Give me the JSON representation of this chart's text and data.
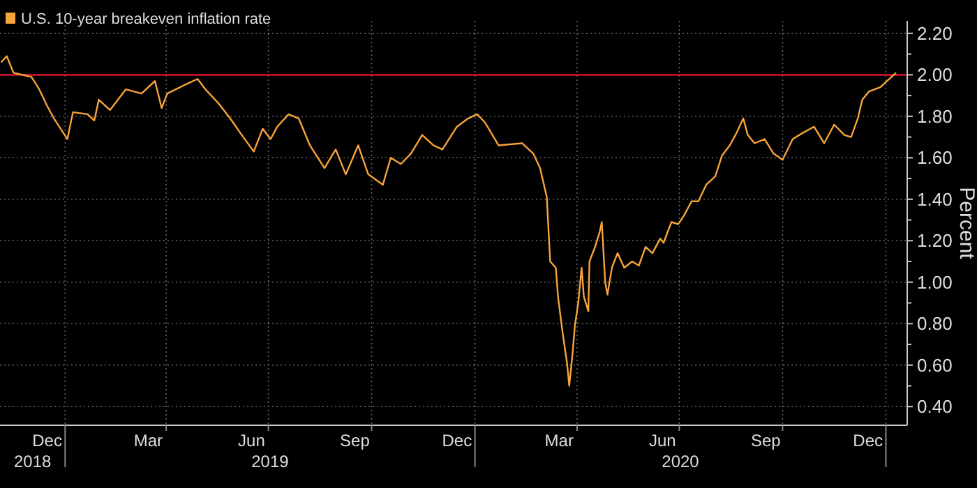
{
  "chart_data": {
    "type": "line",
    "legend": "top left",
    "grid": true,
    "ylabel": "Percent",
    "xlim": [
      "2018-11-04",
      "2021-01-20"
    ],
    "ylim": [
      0.31,
      2.26
    ],
    "yticks": [
      {
        "value": 0.4,
        "label": "0.40"
      },
      {
        "value": 0.6,
        "label": "0.60"
      },
      {
        "value": 0.8,
        "label": "0.80"
      },
      {
        "value": 1.0,
        "label": "1.00"
      },
      {
        "value": 1.2,
        "label": "1.20"
      },
      {
        "value": 1.4,
        "label": "1.40"
      },
      {
        "value": 1.6,
        "label": "1.60"
      },
      {
        "value": 1.8,
        "label": "1.80"
      },
      {
        "value": 2.0,
        "label": "2.00"
      },
      {
        "value": 2.2,
        "label": "2.20"
      }
    ],
    "xticks": [
      {
        "value": "2018-12-16",
        "label": "Dec"
      },
      {
        "value": "2019-01-01",
        "label": null
      },
      {
        "value": "2019-03-16",
        "label": "Mar"
      },
      {
        "value": "2019-04-01",
        "label": null
      },
      {
        "value": "2019-06-16",
        "label": "Jun"
      },
      {
        "value": "2019-07-01",
        "label": null
      },
      {
        "value": "2019-09-16",
        "label": "Sep"
      },
      {
        "value": "2019-10-01",
        "label": null
      },
      {
        "value": "2019-12-16",
        "label": "Dec"
      },
      {
        "value": "2020-01-01",
        "label": null
      },
      {
        "value": "2020-03-16",
        "label": "Mar"
      },
      {
        "value": "2020-04-01",
        "label": null
      },
      {
        "value": "2020-06-16",
        "label": "Jun"
      },
      {
        "value": "2020-07-01",
        "label": null
      },
      {
        "value": "2020-09-16",
        "label": "Sep"
      },
      {
        "value": "2020-10-01",
        "label": null
      },
      {
        "value": "2020-12-16",
        "label": "Dec"
      },
      {
        "value": "2021-01-01",
        "label": null
      }
    ],
    "annotations": [
      "2018",
      "2019",
      "2020"
    ],
    "ref_lines": [
      {
        "axis": "y",
        "value": 2.0,
        "color": "#c8102e"
      }
    ],
    "x": [
      "2018-11-05",
      "2018-11-10",
      "2018-11-16",
      "2018-11-24",
      "2018-12-02",
      "2018-12-09",
      "2018-12-16",
      "2018-12-22",
      "2018-12-28",
      "2019-01-03",
      "2019-01-08",
      "2019-01-21",
      "2019-01-27",
      "2019-01-31",
      "2019-02-10",
      "2019-02-24",
      "2019-03-10",
      "2019-03-22",
      "2019-03-28",
      "2019-04-02",
      "2019-04-17",
      "2019-04-29",
      "2019-05-06",
      "2019-05-18",
      "2019-05-28",
      "2019-06-06",
      "2019-06-18",
      "2019-06-26",
      "2019-07-03",
      "2019-07-09",
      "2019-07-19",
      "2019-07-28",
      "2019-08-07",
      "2019-08-20",
      "2019-08-30",
      "2019-09-08",
      "2019-09-19",
      "2019-09-28",
      "2019-10-11",
      "2019-10-18",
      "2019-10-27",
      "2019-11-05",
      "2019-11-15",
      "2019-11-25",
      "2019-12-03",
      "2019-12-16",
      "2019-12-26",
      "2020-01-03",
      "2020-01-10",
      "2020-01-22",
      "2020-02-12",
      "2020-02-22",
      "2020-02-28",
      "2020-03-05",
      "2020-03-08",
      "2020-03-13",
      "2020-03-15",
      "2020-03-19",
      "2020-03-23",
      "2020-03-25",
      "2020-03-28",
      "2020-03-30",
      "2020-04-02",
      "2020-04-05",
      "2020-04-07",
      "2020-04-11",
      "2020-04-12",
      "2020-04-17",
      "2020-04-21",
      "2020-04-23",
      "2020-04-26",
      "2020-04-28",
      "2020-05-02",
      "2020-05-07",
      "2020-05-13",
      "2020-05-20",
      "2020-05-26",
      "2020-06-01",
      "2020-06-07",
      "2020-06-14",
      "2020-06-17",
      "2020-06-24",
      "2020-06-30",
      "2020-07-05",
      "2020-07-12",
      "2020-07-18",
      "2020-07-25",
      "2020-08-02",
      "2020-08-08",
      "2020-08-15",
      "2020-08-21",
      "2020-08-27",
      "2020-08-31",
      "2020-09-06",
      "2020-09-15",
      "2020-09-23",
      "2020-10-01",
      "2020-10-10",
      "2020-10-19",
      "2020-10-29",
      "2020-11-07",
      "2020-11-16",
      "2020-11-25",
      "2020-12-01",
      "2020-12-07",
      "2020-12-11",
      "2020-12-17",
      "2020-12-27",
      "2021-01-04",
      "2021-01-10"
    ],
    "series": [
      {
        "name": "U.S. 10-year breakeven inflation rate",
        "color": "#f7a43a",
        "values": [
          2.06,
          2.09,
          2.01,
          2.0,
          1.99,
          1.93,
          1.85,
          1.79,
          1.74,
          1.69,
          1.82,
          1.81,
          1.78,
          1.88,
          1.83,
          1.93,
          1.91,
          1.97,
          1.84,
          1.91,
          1.95,
          1.98,
          1.93,
          1.86,
          1.79,
          1.72,
          1.63,
          1.74,
          1.69,
          1.75,
          1.81,
          1.79,
          1.66,
          1.55,
          1.64,
          1.52,
          1.66,
          1.52,
          1.47,
          1.6,
          1.57,
          1.62,
          1.71,
          1.66,
          1.64,
          1.75,
          1.79,
          1.81,
          1.77,
          1.66,
          1.67,
          1.62,
          1.55,
          1.41,
          1.1,
          1.07,
          0.93,
          0.76,
          0.61,
          0.5,
          0.66,
          0.79,
          0.9,
          1.07,
          0.93,
          0.86,
          1.1,
          1.17,
          1.24,
          1.29,
          1.0,
          0.94,
          1.07,
          1.14,
          1.07,
          1.1,
          1.08,
          1.17,
          1.14,
          1.21,
          1.19,
          1.29,
          1.28,
          1.32,
          1.39,
          1.39,
          1.47,
          1.51,
          1.61,
          1.66,
          1.72,
          1.79,
          1.71,
          1.67,
          1.69,
          1.62,
          1.59,
          1.69,
          1.72,
          1.75,
          1.67,
          1.76,
          1.71,
          1.7,
          1.79,
          1.88,
          1.92,
          1.94,
          1.98,
          2.01
        ]
      }
    ]
  }
}
